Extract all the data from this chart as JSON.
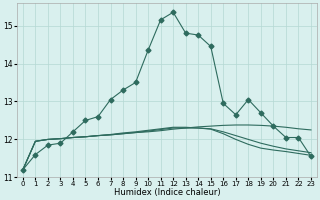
{
  "xlabel": "Humidex (Indice chaleur)",
  "x": [
    0,
    1,
    2,
    3,
    4,
    5,
    6,
    7,
    8,
    9,
    10,
    11,
    12,
    13,
    14,
    15,
    16,
    17,
    18,
    19,
    20,
    21,
    22,
    23
  ],
  "y_main": [
    11.2,
    11.6,
    11.85,
    11.9,
    12.2,
    12.5,
    12.6,
    13.05,
    13.3,
    13.5,
    14.35,
    15.15,
    15.35,
    14.8,
    14.75,
    14.45,
    12.95,
    12.65,
    13.05,
    12.7,
    12.35,
    12.05,
    12.05,
    11.55
  ],
  "y_trend1": [
    11.2,
    11.95,
    12.0,
    12.02,
    12.05,
    12.07,
    12.1,
    12.12,
    12.15,
    12.18,
    12.2,
    12.23,
    12.27,
    12.3,
    12.33,
    12.35,
    12.37,
    12.38,
    12.38,
    12.37,
    12.35,
    12.32,
    12.28,
    12.25
  ],
  "y_trend2": [
    11.2,
    11.95,
    12.0,
    12.02,
    12.05,
    12.07,
    12.1,
    12.12,
    12.15,
    12.18,
    12.22,
    12.26,
    12.3,
    12.3,
    12.3,
    12.28,
    12.2,
    12.1,
    12.0,
    11.9,
    11.82,
    11.75,
    11.7,
    11.65
  ],
  "y_trend3": [
    11.2,
    11.95,
    12.0,
    12.02,
    12.05,
    12.07,
    12.1,
    12.13,
    12.17,
    12.2,
    12.24,
    12.28,
    12.32,
    12.32,
    12.3,
    12.27,
    12.15,
    12.0,
    11.87,
    11.77,
    11.72,
    11.68,
    11.63,
    11.58
  ],
  "color": "#2e6b5e",
  "bg_color": "#d9f0ee",
  "grid_color": "#b5d8d4",
  "ylim": [
    11.0,
    15.6
  ],
  "yticks": [
    11,
    12,
    13,
    14,
    15
  ],
  "marker": "D",
  "marker_size": 2.5,
  "linewidth": 0.8
}
